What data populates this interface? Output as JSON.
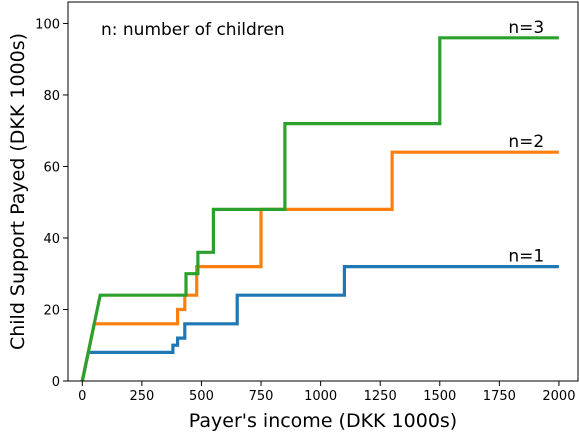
{
  "chart_data": {
    "type": "line",
    "title": "",
    "xlabel": "Payer's income (DKK 1000s)",
    "ylabel": "Child Support Payed (DKK 1000s)",
    "xlim": [
      -60,
      2080
    ],
    "ylim": [
      0,
      106
    ],
    "xticks": [
      0,
      250,
      500,
      750,
      1000,
      1250,
      1500,
      1750,
      2000
    ],
    "yticks": [
      0,
      20,
      40,
      60,
      80,
      100
    ],
    "grid": false,
    "legend": "none",
    "annotation": "n: number of children",
    "series": [
      {
        "label": "n=1",
        "color": "#1f77b4",
        "x": [
          0,
          25,
          380,
          380,
          400,
          400,
          430,
          430,
          650,
          650,
          1100,
          1100,
          2000
        ],
        "y": [
          0,
          8,
          8,
          10,
          10,
          12,
          12,
          16,
          16,
          24,
          24,
          32,
          32
        ]
      },
      {
        "label": "n=2",
        "color": "#ff7f0e",
        "x": [
          0,
          50,
          400,
          400,
          430,
          430,
          480,
          480,
          750,
          750,
          1300,
          1300,
          2000
        ],
        "y": [
          0,
          16,
          16,
          20,
          20,
          24,
          24,
          32,
          32,
          48,
          48,
          64,
          64
        ]
      },
      {
        "label": "n=3",
        "color": "#2ca02c",
        "x": [
          0,
          75,
          435,
          435,
          485,
          485,
          550,
          550,
          850,
          850,
          1500,
          1500,
          2000
        ],
        "y": [
          0,
          24,
          24,
          30,
          30,
          36,
          36,
          48,
          48,
          72,
          72,
          96,
          96
        ]
      }
    ]
  }
}
